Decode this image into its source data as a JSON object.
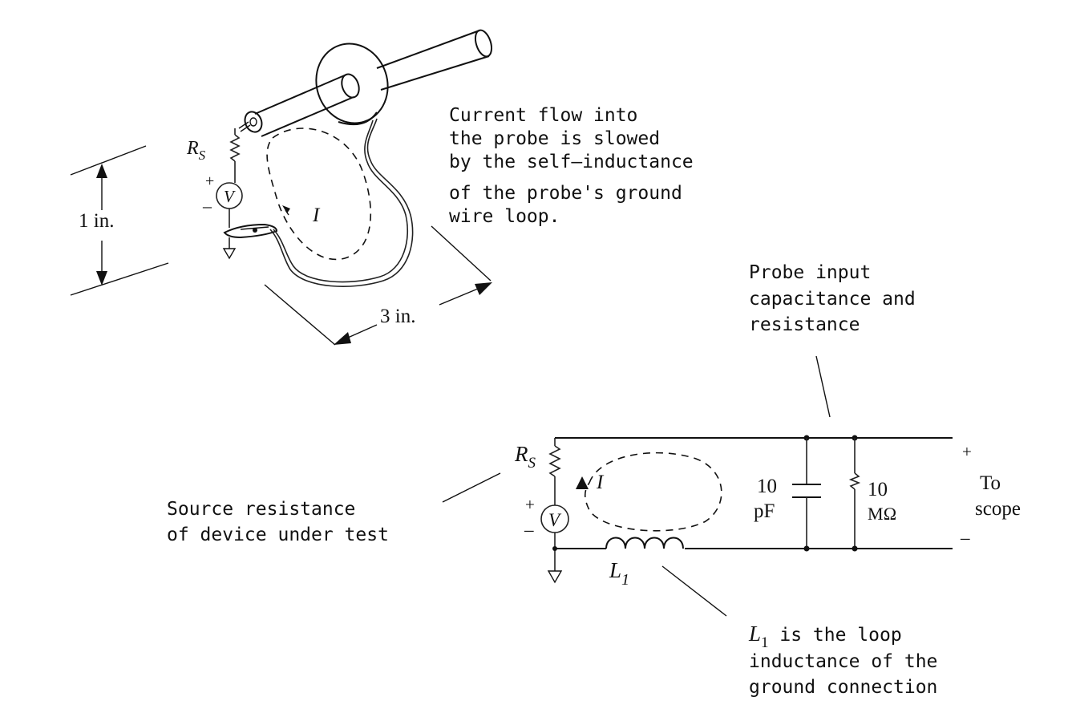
{
  "probe_sketch": {
    "rs_label": "R",
    "rs_subscript": "S",
    "plus": "+",
    "minus": "–",
    "v_label": "V",
    "current_label": "I",
    "dim_vertical_label": "1  in.",
    "dim_horizontal_label": "3  in.",
    "callout": [
      "Current flow into",
      "the probe is slowed",
      "by the self–inductance",
      "of the probe's ground",
      "wire loop."
    ]
  },
  "schematic": {
    "rs_label": "R",
    "rs_subscript": "S",
    "plus": "+",
    "minus": "–",
    "v_label": "V",
    "current_label": "I",
    "cap_value_top": "10",
    "cap_value_bottom": "pF",
    "res_value_top": "10",
    "res_value_bottom": "MΩ",
    "inductor_label": "L",
    "inductor_subscript": "1",
    "out_plus": "+",
    "out_minus": "–",
    "to_scope": [
      "To",
      "scope"
    ],
    "probe_input_note": [
      "Probe input",
      "capacitance and",
      "resistance"
    ],
    "source_note": [
      "Source resistance",
      "of device under test"
    ],
    "l1_note_label": "L",
    "l1_note_subscript": "1",
    "l1_note_lines": [
      " is the loop",
      "inductance of the",
      "ground connection"
    ]
  }
}
